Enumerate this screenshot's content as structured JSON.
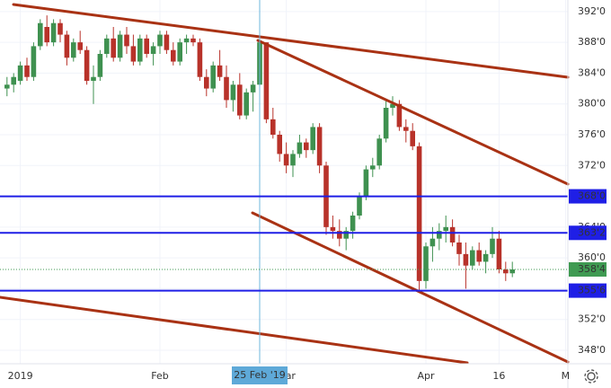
{
  "chart_data": {
    "type": "candlestick",
    "categories": [
      null,
      null,
      "2019",
      null,
      null,
      null,
      null,
      null,
      null,
      null,
      null,
      null,
      null,
      null,
      null,
      null,
      null,
      null,
      null,
      null,
      null,
      null,
      null,
      "Feb",
      null,
      null,
      null,
      null,
      null,
      null,
      null,
      null,
      null,
      null,
      null,
      null,
      null,
      null,
      null,
      null,
      null,
      null,
      "Mar",
      null,
      null,
      null,
      null,
      null,
      null,
      null,
      null,
      null,
      null,
      null,
      null,
      null,
      null,
      null,
      null,
      null,
      null,
      null,
      null,
      "Apr",
      null,
      null,
      null,
      null,
      null,
      null,
      null,
      null,
      null,
      null,
      "16",
      null,
      null,
      null,
      null,
      null,
      null,
      null,
      null,
      null,
      "M"
    ],
    "ohlc": [
      [
        382,
        383.5,
        381,
        382.5
      ],
      [
        382.5,
        384,
        381.5,
        383.5
      ],
      [
        383,
        385.5,
        382.5,
        385
      ],
      [
        385,
        386,
        383,
        383.5
      ],
      [
        383.5,
        388,
        383,
        387.5
      ],
      [
        387.5,
        391,
        387,
        390.5
      ],
      [
        390,
        391.5,
        387.5,
        388
      ],
      [
        388,
        391,
        387.5,
        390.5
      ],
      [
        390.5,
        391,
        388,
        389
      ],
      [
        389,
        389.5,
        385,
        386
      ],
      [
        386,
        388.5,
        385.5,
        388
      ],
      [
        388,
        389.5,
        386.5,
        387
      ],
      [
        387,
        387.5,
        382.5,
        383
      ],
      [
        383,
        385,
        380,
        383.5
      ],
      [
        383.5,
        387,
        383,
        386.5
      ],
      [
        386.5,
        389,
        386,
        388.5
      ],
      [
        388.5,
        390,
        385.5,
        386
      ],
      [
        386,
        389.5,
        385.5,
        389
      ],
      [
        389,
        390,
        386.5,
        387.5
      ],
      [
        387.5,
        389,
        385,
        385.5
      ],
      [
        385.5,
        389,
        385,
        388.5
      ],
      [
        388.5,
        389,
        386,
        386.5
      ],
      [
        386.5,
        388,
        385,
        387.5
      ],
      [
        387.5,
        389.5,
        386.5,
        389
      ],
      [
        389,
        389.5,
        386.5,
        387
      ],
      [
        387,
        388,
        385,
        385.5
      ],
      [
        385.5,
        388.5,
        385,
        388
      ],
      [
        388,
        389,
        386.5,
        388.5
      ],
      [
        388.5,
        389,
        387.5,
        388
      ],
      [
        388,
        388.5,
        383,
        383.5
      ],
      [
        383.5,
        384.5,
        381,
        382
      ],
      [
        382,
        385.5,
        381.5,
        385
      ],
      [
        385,
        387,
        383,
        383.5
      ],
      [
        383.5,
        385,
        379.5,
        380.5
      ],
      [
        380.5,
        383,
        379,
        382.5
      ],
      [
        382.5,
        384,
        378,
        378.5
      ],
      [
        378.5,
        382,
        378,
        381.5
      ],
      [
        381.5,
        383,
        379,
        382.5
      ],
      [
        382.5,
        388.5,
        382,
        388
      ],
      [
        388,
        388,
        377.5,
        378
      ],
      [
        378,
        379.5,
        375.5,
        376
      ],
      [
        376,
        376.5,
        372.5,
        373.5
      ],
      [
        373.5,
        375,
        371,
        372
      ],
      [
        372,
        374,
        370.5,
        373.5
      ],
      [
        373.5,
        376,
        373,
        375
      ],
      [
        375,
        375.5,
        373,
        374
      ],
      [
        374,
        377.5,
        373.5,
        377
      ],
      [
        377,
        377.5,
        371,
        372
      ],
      [
        372,
        372.5,
        363,
        364
      ],
      [
        364,
        365.5,
        362.5,
        363.5
      ],
      [
        363.5,
        365,
        361.5,
        362.5
      ],
      [
        362.5,
        364,
        361,
        363.5
      ],
      [
        363.5,
        366,
        362.5,
        365.5
      ],
      [
        365.5,
        368.5,
        365,
        368
      ],
      [
        368,
        372,
        367.5,
        371.5
      ],
      [
        371.5,
        373,
        370.5,
        372
      ],
      [
        372,
        376,
        371.5,
        375.5
      ],
      [
        375.5,
        380.5,
        375,
        379.5
      ],
      [
        379.5,
        381,
        378.5,
        380
      ],
      [
        380,
        380.5,
        376.5,
        377
      ],
      [
        377,
        378,
        375,
        376.5
      ],
      [
        376.5,
        377.5,
        374,
        374.5
      ],
      [
        374.5,
        375,
        355.5,
        357
      ],
      [
        357,
        362,
        356,
        361.5
      ],
      [
        361.5,
        364,
        359.5,
        362.5
      ],
      [
        362.5,
        364.5,
        361,
        363.5
      ],
      [
        363.5,
        365.5,
        362,
        364
      ],
      [
        364,
        365,
        361.5,
        362
      ],
      [
        362,
        363,
        359,
        360.5
      ],
      [
        360.5,
        362,
        356,
        359
      ],
      [
        359,
        361.5,
        358.5,
        361
      ],
      [
        361,
        362,
        359,
        359.5
      ],
      [
        359.5,
        361,
        358,
        360.5
      ],
      [
        360.5,
        364,
        360,
        362.5
      ],
      [
        362.5,
        363.5,
        358,
        358.5
      ],
      [
        358.5,
        359.5,
        357,
        358
      ],
      [
        358,
        359.5,
        357.5,
        358.5
      ],
      null,
      null,
      null,
      null,
      null,
      null,
      null,
      null
    ],
    "up_color": "#3f9150",
    "down_color": "#b8322a",
    "ylim": [
      346.25,
      393.5
    ],
    "yticks": [
      {
        "value": 348,
        "label": "348'0"
      },
      {
        "value": 352,
        "label": "352'0"
      },
      {
        "value": 356,
        "label": "356'0"
      },
      {
        "value": 360,
        "label": "360'0"
      },
      {
        "value": 364,
        "label": "364'0"
      },
      {
        "value": 368,
        "label": "368'0"
      },
      {
        "value": 372,
        "label": "372'0"
      },
      {
        "value": 376,
        "label": "376'0"
      },
      {
        "value": 380,
        "label": "380'0"
      },
      {
        "value": 384,
        "label": "384'0"
      },
      {
        "value": 388,
        "label": "388'0"
      },
      {
        "value": 392,
        "label": "392'0"
      }
    ],
    "grid": true,
    "horizontal_lines": [
      {
        "value": 368,
        "label": "368'0"
      },
      {
        "value": 363.25,
        "label": "363'2"
      },
      {
        "value": 355.75,
        "label": "355'6"
      }
    ],
    "line_color": "#1f1fe6",
    "last_price": {
      "value": 358.5,
      "label": "358'4",
      "color": "#3f9a52"
    },
    "crosshair": {
      "label": "25 Feb '19"
    }
  }
}
